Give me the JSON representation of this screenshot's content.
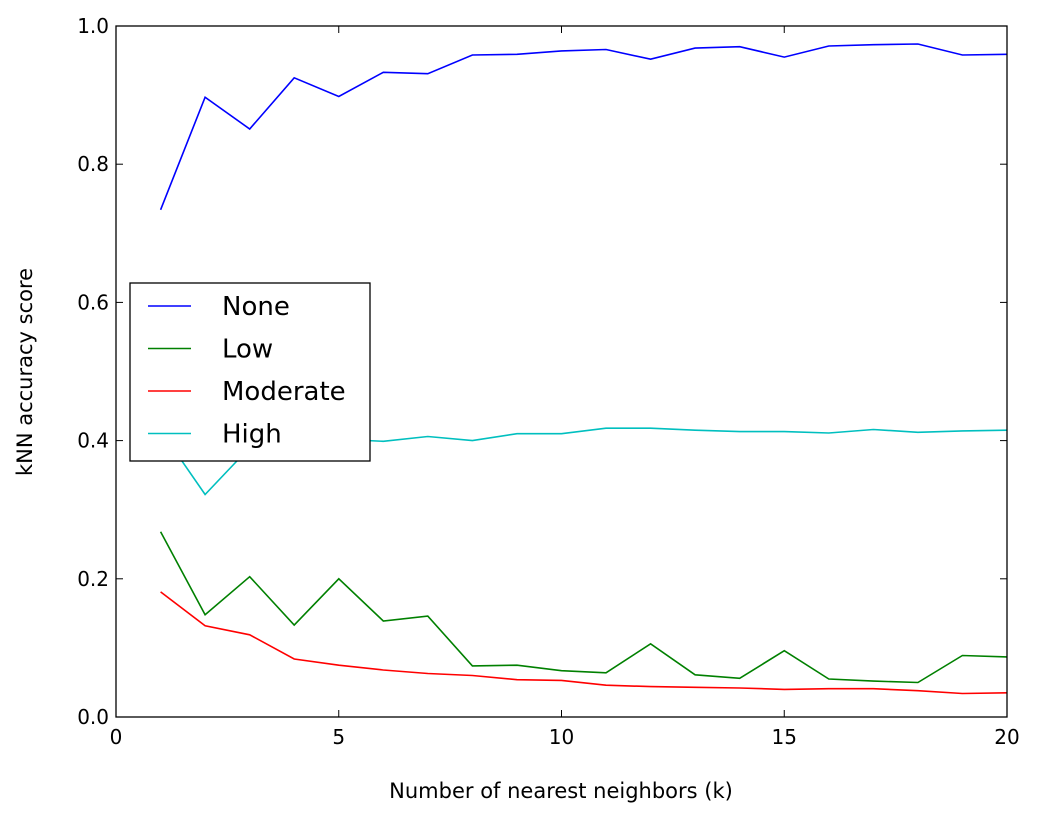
{
  "chart_data": {
    "type": "line",
    "title": "",
    "xlabel": "Number of nearest neighbors (k)",
    "ylabel": "kNN accuracy score",
    "xlim": [
      0,
      20
    ],
    "ylim": [
      0.0,
      1.0
    ],
    "xticks": [
      "0",
      "5",
      "10",
      "15",
      "20"
    ],
    "yticks": [
      "0.0",
      "0.2",
      "0.4",
      "0.6",
      "0.8",
      "1.0"
    ],
    "grid": false,
    "legend_position": "center-left",
    "x": [
      1,
      2,
      3,
      4,
      5,
      6,
      7,
      8,
      9,
      10,
      11,
      12,
      13,
      14,
      15,
      16,
      17,
      18,
      19,
      20
    ],
    "series": [
      {
        "name": "None",
        "color": "#0000ff",
        "values": [
          0.734,
          0.897,
          0.851,
          0.925,
          0.898,
          0.933,
          0.931,
          0.958,
          0.959,
          0.964,
          0.966,
          0.952,
          0.968,
          0.97,
          0.955,
          0.971,
          0.973,
          0.974,
          0.958,
          0.959
        ]
      },
      {
        "name": "Low",
        "color": "#008000",
        "values": [
          0.268,
          0.148,
          0.203,
          0.133,
          0.2,
          0.139,
          0.146,
          0.074,
          0.075,
          0.067,
          0.064,
          0.106,
          0.061,
          0.056,
          0.096,
          0.055,
          0.052,
          0.05,
          0.089,
          0.087
        ]
      },
      {
        "name": "Moderate",
        "color": "#ff0000",
        "values": [
          0.181,
          0.132,
          0.119,
          0.084,
          0.075,
          0.068,
          0.063,
          0.06,
          0.054,
          0.053,
          0.046,
          0.044,
          0.043,
          0.042,
          0.04,
          0.041,
          0.041,
          0.038,
          0.034,
          0.035
        ]
      },
      {
        "name": "High",
        "color": "#00bfbf",
        "values": [
          0.415,
          0.322,
          0.39,
          0.392,
          0.402,
          0.399,
          0.406,
          0.4,
          0.41,
          0.41,
          0.418,
          0.418,
          0.415,
          0.413,
          0.413,
          0.411,
          0.416,
          0.412,
          0.414,
          0.415
        ]
      }
    ]
  }
}
